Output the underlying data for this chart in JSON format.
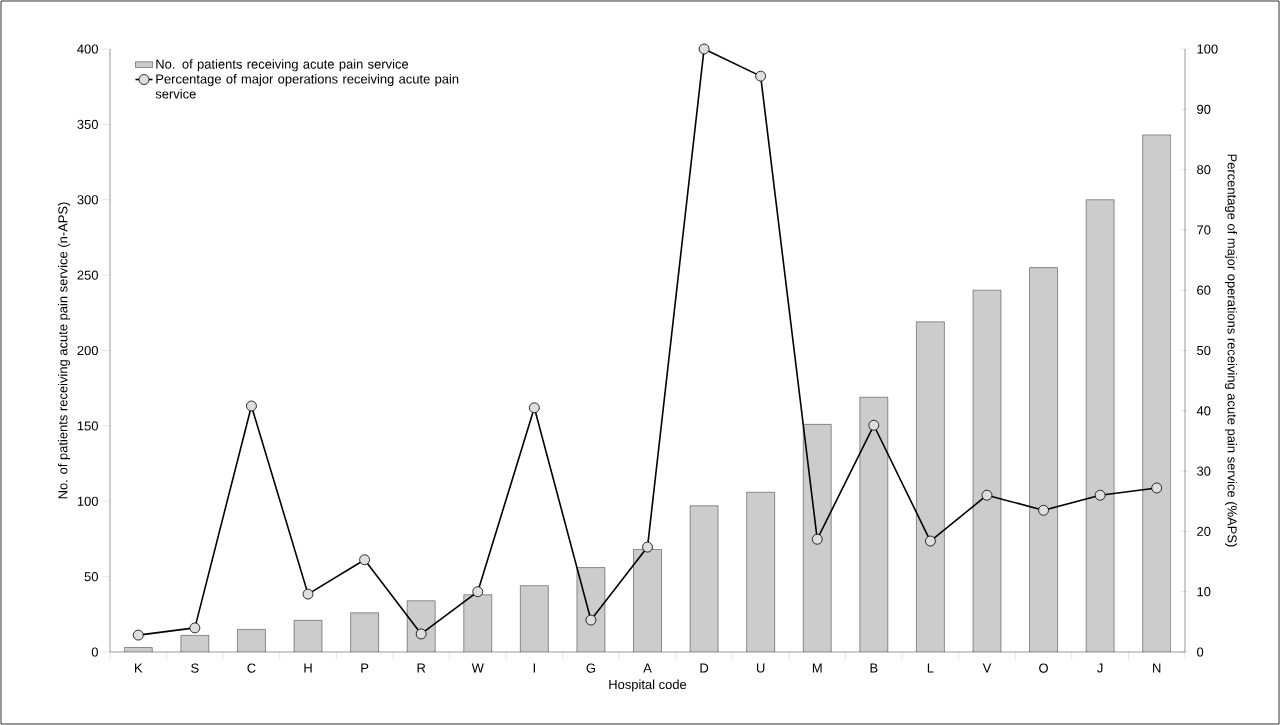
{
  "chart_data": {
    "type": "bar",
    "xlabel": "Hospital code",
    "ylabel": "No. of patients receiving acute pain service (n-APS)",
    "y2label": "Percentage of major operations receiving acute pain service (%APS)",
    "categories": [
      "K",
      "S",
      "C",
      "H",
      "P",
      "R",
      "W",
      "I",
      "G",
      "A",
      "D",
      "U",
      "M",
      "B",
      "L",
      "V",
      "O",
      "J",
      "N"
    ],
    "series": [
      {
        "name": "No. of patients receiving acute pain service",
        "color": "#cccccc",
        "values": [
          3,
          11,
          15,
          21,
          26,
          34,
          38,
          44,
          56,
          68,
          97,
          106,
          151,
          169,
          219,
          240,
          255,
          300,
          343
        ]
      },
      {
        "name": "Percentage of major operations receiving acute pain service",
        "type": "line",
        "axis": "y2",
        "color": "#000000",
        "marker": "circle",
        "values": [
          2.8,
          4,
          40.8,
          9.6,
          15.3,
          3,
          10,
          40.5,
          5.3,
          17.4,
          100,
          95.5,
          18.7,
          37.6,
          18.4,
          26,
          23.5,
          26,
          27.2
        ]
      }
    ],
    "ylim": [
      0,
      400
    ],
    "yticks": [
      0,
      50,
      100,
      150,
      200,
      250,
      300,
      350,
      400
    ],
    "y2lim": [
      0,
      100
    ],
    "y2ticks": [
      0,
      10,
      20,
      30,
      40,
      50,
      60,
      70,
      80,
      90,
      100
    ],
    "legend": "top left",
    "grid": false
  }
}
